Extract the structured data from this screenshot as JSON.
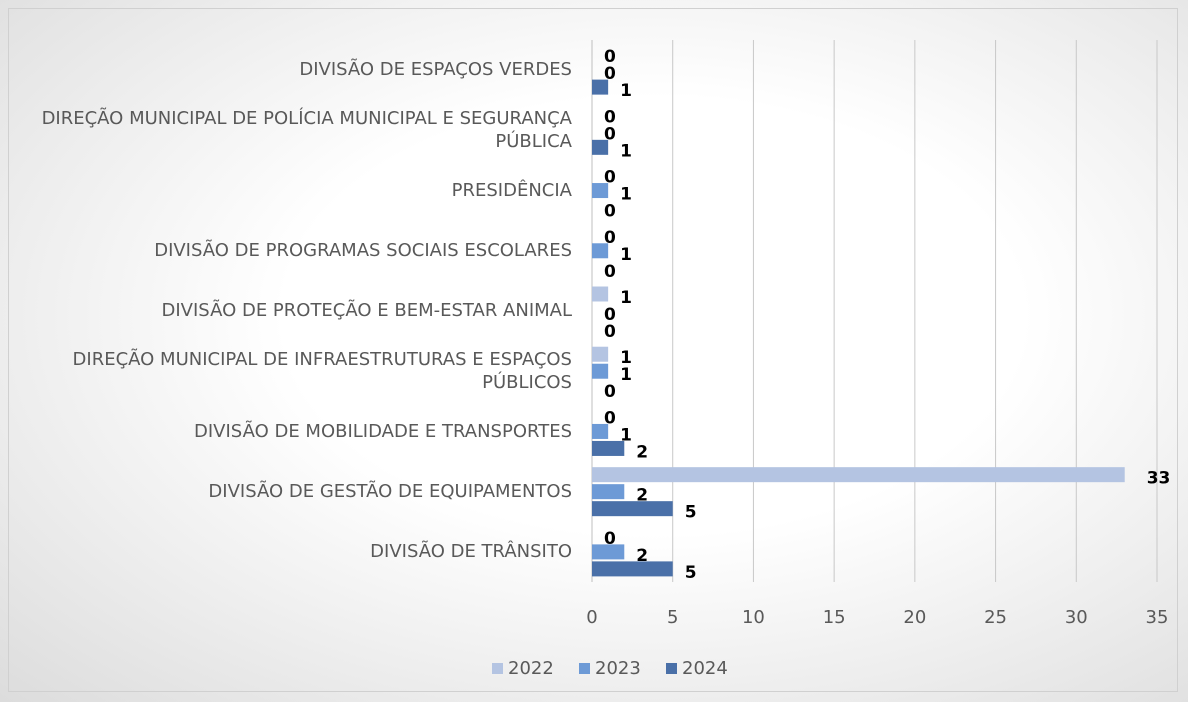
{
  "chart_data": {
    "type": "bar",
    "orientation": "horizontal",
    "categories": [
      "DIVISÃO DE ESPAÇOS VERDES",
      "DIREÇÃO MUNICIPAL DE POLÍCIA MUNICIPAL E SEGURANÇA PÚBLICA",
      "PRESIDÊNCIA",
      "DIVISÃO DE PROGRAMAS SOCIAIS ESCOLARES",
      "DIVISÃO DE PROTEÇÃO E BEM-ESTAR ANIMAL",
      "DIREÇÃO MUNICIPAL DE INFRAESTRUTURAS E ESPAÇOS PÚBLICOS",
      "DIVISÃO DE MOBILIDADE E TRANSPORTES",
      "DIVISÃO DE GESTÃO DE EQUIPAMENTOS",
      "DIVISÃO DE TRÂNSITO"
    ],
    "series": [
      {
        "name": "2022",
        "color": "#b4c4e2",
        "values": [
          0,
          0,
          0,
          0,
          1,
          1,
          0,
          33,
          0
        ]
      },
      {
        "name": "2023",
        "color": "#6d9ad6",
        "values": [
          0,
          0,
          1,
          1,
          0,
          1,
          1,
          2,
          2
        ]
      },
      {
        "name": "2024",
        "color": "#4a70a8",
        "values": [
          1,
          1,
          0,
          0,
          0,
          0,
          2,
          5,
          5
        ]
      }
    ],
    "xlim": [
      0,
      35
    ],
    "xticks": [
      0,
      5,
      10,
      15,
      20,
      25,
      30,
      35
    ],
    "grid": true,
    "legend": "bottom"
  }
}
